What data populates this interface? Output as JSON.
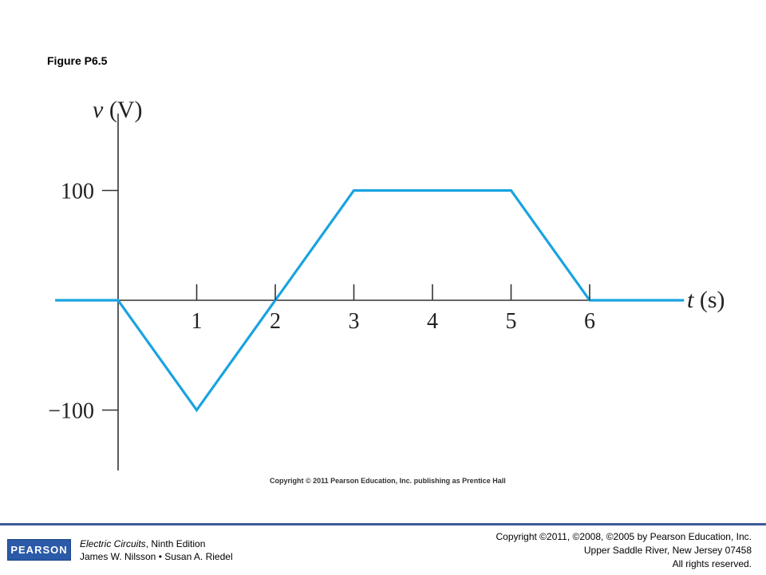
{
  "figure_label": "Figure P6.5",
  "chart_data": {
    "type": "line",
    "title": "",
    "xlabel_var": "t",
    "xlabel_unit": "(s)",
    "ylabel_var": "v",
    "ylabel_unit": "(V)",
    "xlim": [
      -0.8,
      7.2
    ],
    "ylim": [
      -155,
      170
    ],
    "x_ticks": [
      1,
      2,
      3,
      4,
      5,
      6
    ],
    "x_tick_labels": [
      "1",
      "2",
      "3",
      "4",
      "5",
      "6"
    ],
    "y_ticks": [
      100,
      -100
    ],
    "y_tick_labels": [
      "100",
      "−100"
    ],
    "grid": false,
    "legend": "none",
    "series": [
      {
        "color": "#1aa3e0",
        "x": [
          -0.8,
          0,
          1,
          2,
          3,
          5,
          6,
          7.2
        ],
        "y": [
          0,
          0,
          -100,
          0,
          100,
          100,
          0,
          0
        ]
      }
    ]
  },
  "inner_copyright": "Copyright © 2011 Pearson Education, Inc. publishing as Prentice Hall",
  "footer": {
    "logo_text": "PEARSON",
    "book_title": "Electric Circuits",
    "book_edition": ", Ninth Edition",
    "authors": "James W. Nilsson • Susan A. Riedel",
    "copyright_lines": [
      "Copyright ©2011, ©2008, ©2005 by Pearson Education, Inc.",
      "Upper Saddle River, New Jersey 07458",
      "All rights reserved."
    ],
    "accent_color": "#3d5a9b"
  }
}
